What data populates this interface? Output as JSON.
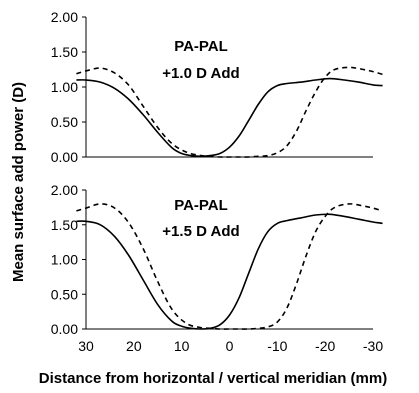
{
  "chart_data": [
    {
      "type": "line",
      "title_lines": [
        "PA-PAL",
        "+1.0 D Add"
      ],
      "ylim": [
        0,
        2
      ],
      "xlim": [
        30,
        -30
      ],
      "y_ticks": [
        "2.00",
        "1.50",
        "1.00",
        "0.50",
        "0.00"
      ],
      "x_ticks": [],
      "series": [
        {
          "style": "solid",
          "x": [
            32,
            30,
            27,
            24,
            21,
            18,
            15,
            12,
            10,
            8,
            6,
            4,
            2,
            0,
            -2,
            -4,
            -6,
            -8,
            -10,
            -12,
            -15,
            -18,
            -21,
            -24,
            -27,
            -30,
            -32
          ],
          "y": [
            1.1,
            1.1,
            1.07,
            0.98,
            0.82,
            0.6,
            0.35,
            0.13,
            0.05,
            0.02,
            0.01,
            0.02,
            0.05,
            0.14,
            0.3,
            0.52,
            0.75,
            0.93,
            1.02,
            1.05,
            1.07,
            1.1,
            1.12,
            1.1,
            1.07,
            1.03,
            1.02
          ]
        },
        {
          "style": "dashed",
          "x": [
            32,
            30,
            27,
            24,
            21,
            18,
            15,
            12,
            9,
            6,
            4,
            2,
            0,
            -2,
            -4,
            -6,
            -8,
            -10,
            -12,
            -14,
            -16,
            -18,
            -20,
            -22,
            -25,
            -28,
            -30,
            -32
          ],
          "y": [
            1.19,
            1.23,
            1.27,
            1.2,
            1.02,
            0.72,
            0.42,
            0.19,
            0.07,
            0.02,
            0.01,
            0.0,
            0.0,
            0.0,
            0.0,
            0.01,
            0.02,
            0.06,
            0.16,
            0.37,
            0.66,
            0.93,
            1.14,
            1.25,
            1.28,
            1.25,
            1.22,
            1.18
          ]
        }
      ]
    },
    {
      "type": "line",
      "title_lines": [
        "PA-PAL",
        "+1.5 D Add"
      ],
      "ylim": [
        0,
        2
      ],
      "xlim": [
        30,
        -30
      ],
      "y_ticks": [
        "2.00",
        "1.50",
        "1.00",
        "0.50",
        "0.00"
      ],
      "x_ticks": [
        "30",
        "20",
        "10",
        "0",
        "-10",
        "-20",
        "-30"
      ],
      "series": [
        {
          "style": "solid",
          "x": [
            32,
            30,
            27,
            24,
            21,
            18,
            15,
            12,
            10,
            8,
            6,
            4,
            2,
            0,
            -2,
            -4,
            -6,
            -8,
            -10,
            -12,
            -15,
            -18,
            -21,
            -24,
            -27,
            -30,
            -32
          ],
          "y": [
            1.55,
            1.55,
            1.5,
            1.33,
            1.05,
            0.7,
            0.35,
            0.11,
            0.04,
            0.01,
            0.0,
            0.01,
            0.06,
            0.2,
            0.45,
            0.8,
            1.15,
            1.4,
            1.52,
            1.56,
            1.6,
            1.64,
            1.65,
            1.62,
            1.58,
            1.54,
            1.52
          ]
        },
        {
          "style": "dashed",
          "x": [
            32,
            30,
            27,
            24,
            21,
            18,
            15,
            12,
            9,
            6,
            4,
            2,
            0,
            -2,
            -4,
            -6,
            -8,
            -10,
            -12,
            -14,
            -16,
            -18,
            -20,
            -22,
            -25,
            -28,
            -30,
            -32
          ],
          "y": [
            1.7,
            1.74,
            1.8,
            1.74,
            1.52,
            1.15,
            0.68,
            0.28,
            0.08,
            0.02,
            0.01,
            0.0,
            0.0,
            0.0,
            0.0,
            0.01,
            0.03,
            0.1,
            0.3,
            0.65,
            1.05,
            1.4,
            1.62,
            1.75,
            1.8,
            1.77,
            1.74,
            1.7
          ]
        }
      ]
    }
  ],
  "shared": {
    "ylabel": "Mean surface add power (D)",
    "xlabel": "Distance from horizontal / vertical meridian (mm)"
  }
}
